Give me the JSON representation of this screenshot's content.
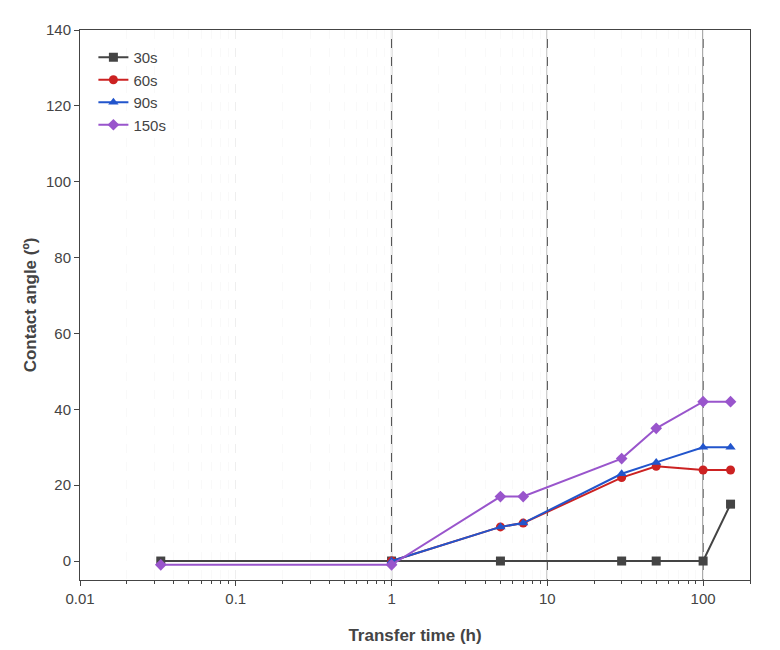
{
  "chart_data": {
    "type": "line",
    "xlabel": "Transfer time (h)",
    "ylabel": "Contact angle (º)",
    "log": "x",
    "xlim": [
      0.01,
      200
    ],
    "xticks": [
      0.01,
      0.1,
      1,
      10,
      100
    ],
    "ylim": [
      -5,
      140
    ],
    "yticks": [
      0,
      20,
      40,
      60,
      80,
      100,
      120,
      140
    ],
    "grid": "x",
    "legend": "upper left",
    "vlines": [
      1.0,
      10.0,
      100.0
    ],
    "series": [
      {
        "name": "30s",
        "color": "#444444",
        "marker": "square",
        "x": [
          0.033,
          1.0,
          5.0,
          30.0,
          50.0,
          100.0,
          150.0
        ],
        "values": [
          0,
          0,
          0,
          0,
          0,
          0,
          15
        ]
      },
      {
        "name": "60s",
        "color": "#cc2222",
        "marker": "circle",
        "x": [
          1.0,
          5.0,
          7.0,
          30.0,
          50.0,
          100.0,
          150.0
        ],
        "values": [
          0,
          9,
          10,
          22,
          25,
          24,
          24
        ]
      },
      {
        "name": "90s",
        "color": "#2255cc",
        "marker": "triangle-up",
        "x": [
          1.0,
          5.0,
          7.0,
          30.0,
          50.0,
          100.0,
          150.0
        ],
        "values": [
          0,
          9,
          10,
          23,
          26,
          30,
          30
        ]
      },
      {
        "name": "150s",
        "color": "#9955cc",
        "marker": "diamond",
        "x": [
          0.033,
          1.0,
          5.0,
          7.0,
          30.0,
          50.0,
          100.0,
          150.0
        ],
        "values": [
          -1,
          -1,
          17,
          17,
          27,
          35,
          42,
          42
        ]
      }
    ]
  }
}
